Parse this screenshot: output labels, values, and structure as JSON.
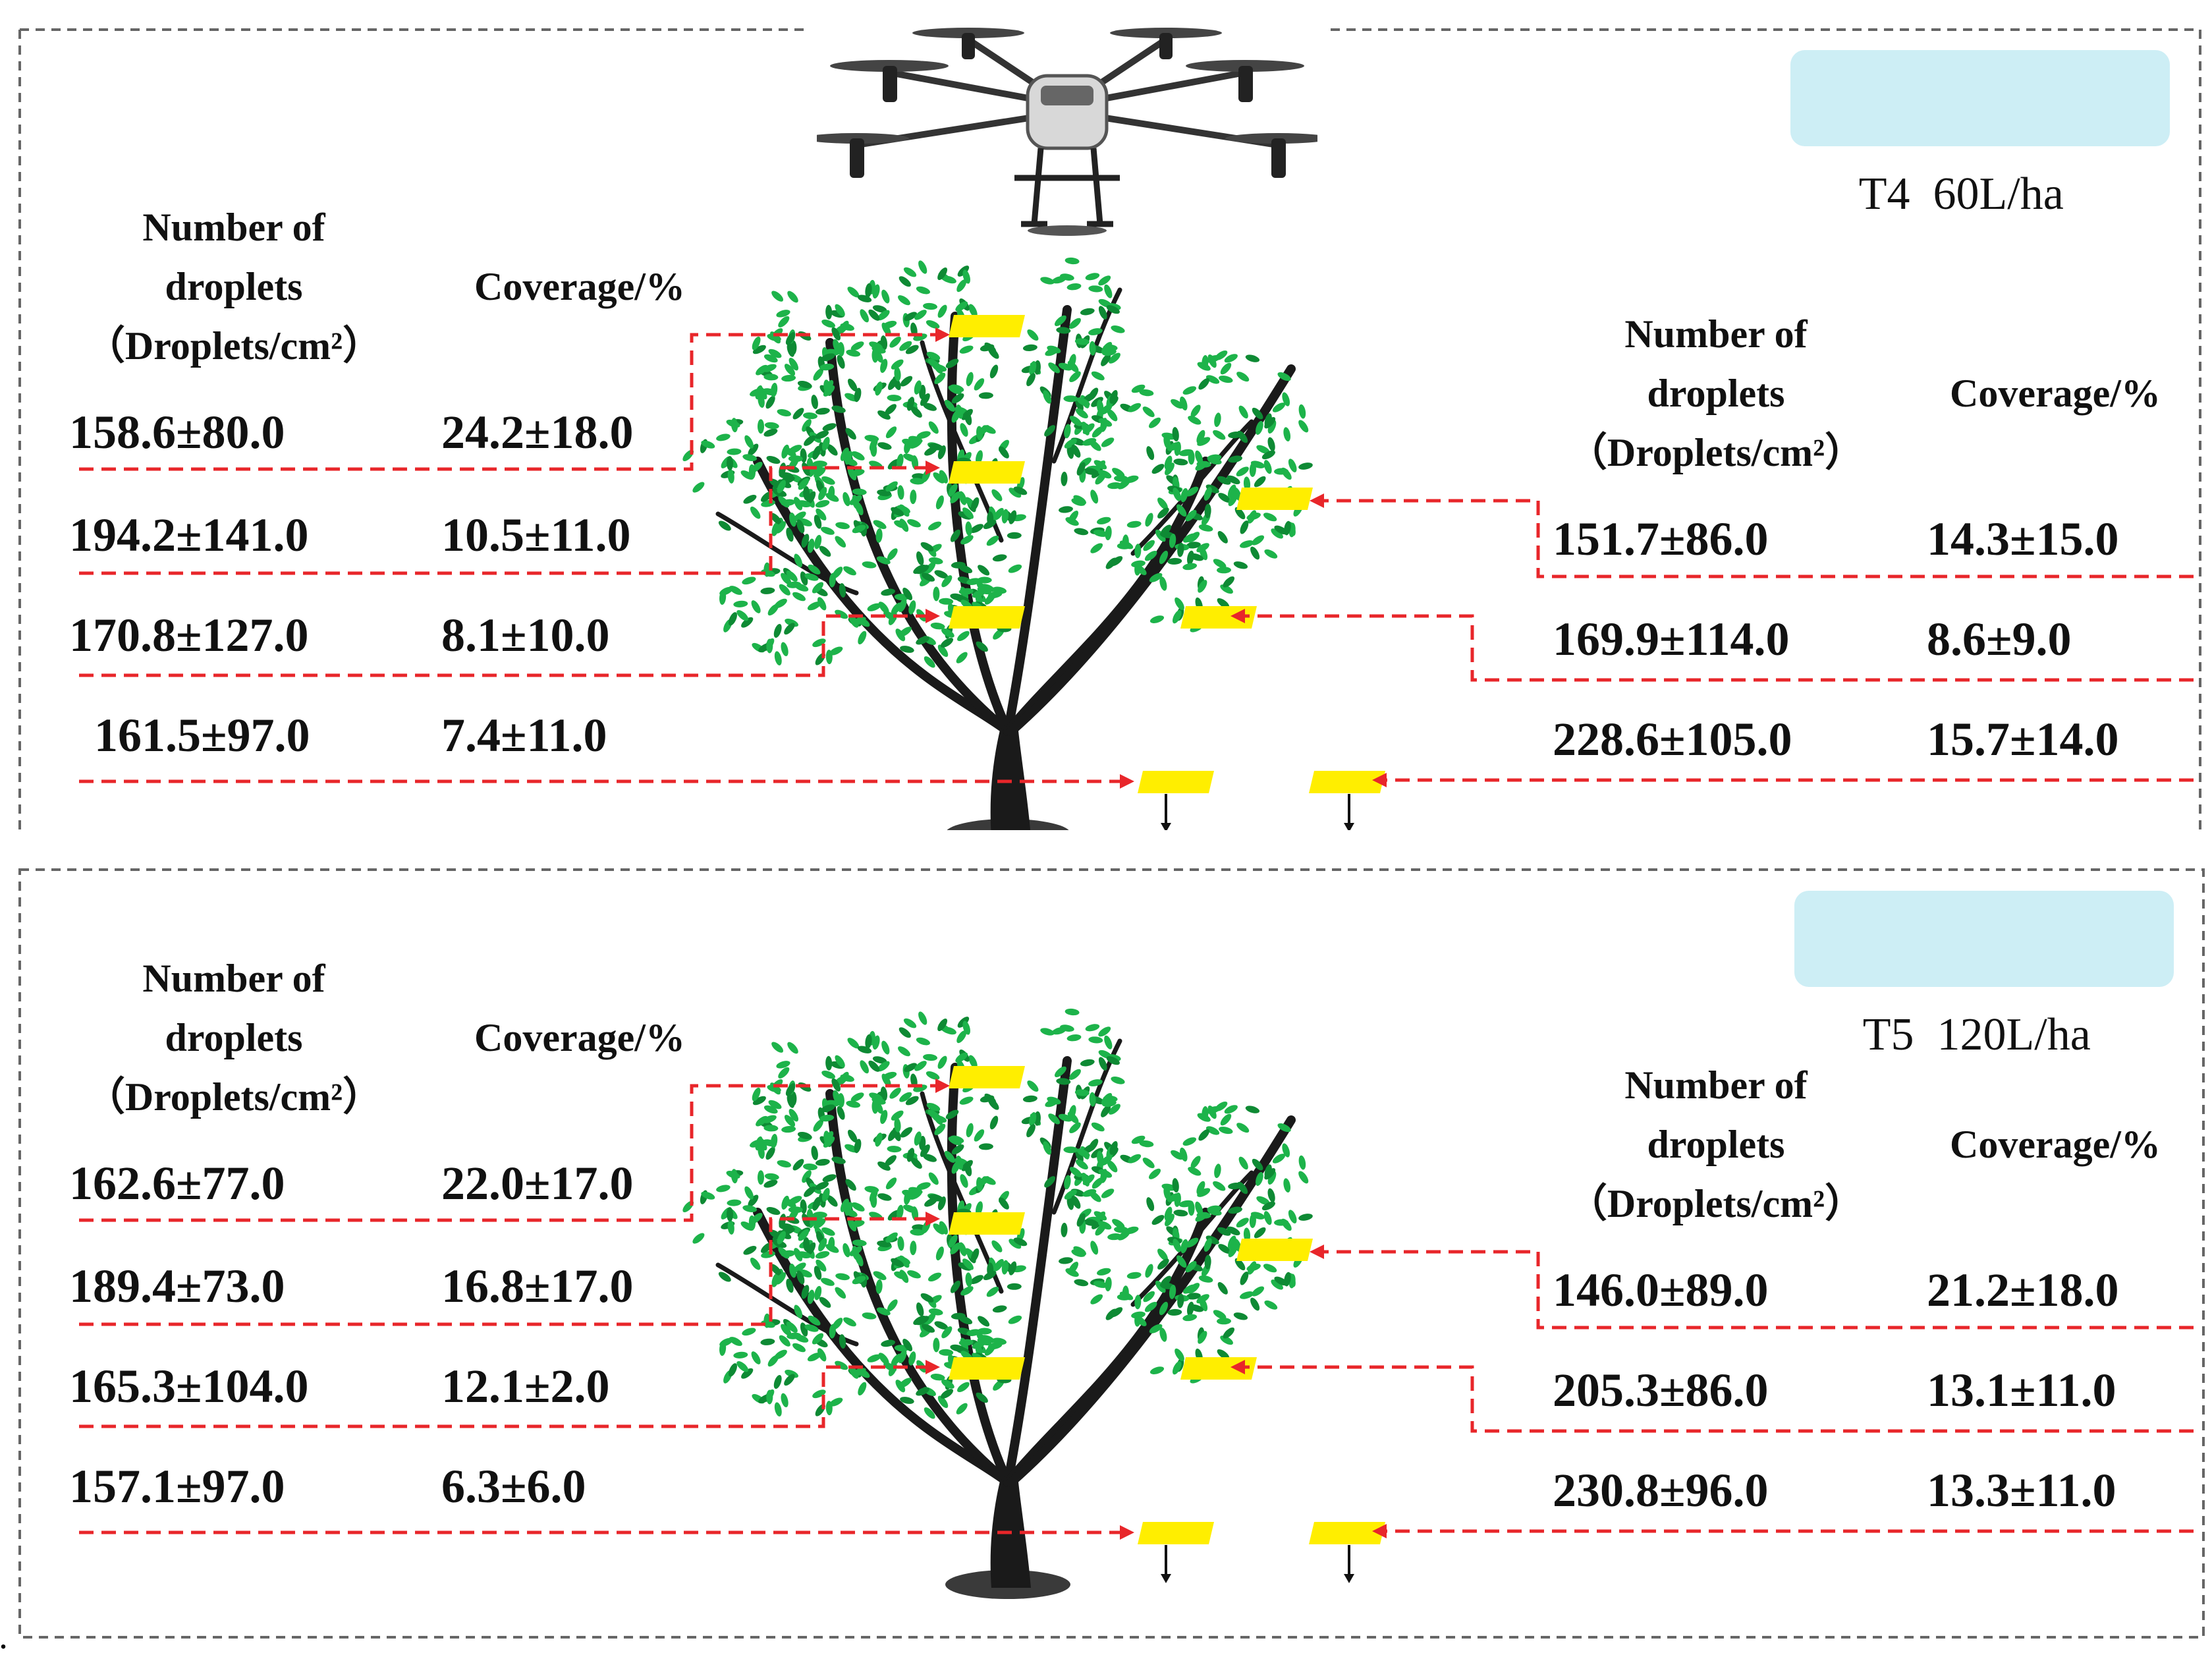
{
  "panels": [
    {
      "treatment": "T4",
      "rate": "60L/ha",
      "left": {
        "header_droplets": [
          "Number of",
          "droplets",
          "（Droplets/cm²）"
        ],
        "header_coverage": "Coverage/%",
        "rows": [
          {
            "droplets": "158.6±80.0",
            "coverage": "24.2±18.0"
          },
          {
            "droplets": "194.2±141.0",
            "coverage": "10.5±11.0"
          },
          {
            "droplets": "170.8±127.0",
            "coverage": "8.1±10.0"
          },
          {
            "droplets": "161.5±97.0",
            "coverage": "7.4±11.0"
          }
        ]
      },
      "right": {
        "header_droplets": [
          "Number of",
          "droplets",
          "（Droplets/cm²）"
        ],
        "header_coverage": "Coverage/%",
        "rows": [
          {
            "droplets": "151.7±86.0",
            "coverage": "14.3±15.0"
          },
          {
            "droplets": "169.9±114.0",
            "coverage": "8.6±9.0"
          },
          {
            "droplets": "228.6±105.0",
            "coverage": "15.7±14.0"
          }
        ]
      }
    },
    {
      "treatment": "T5",
      "rate": "120L/ha",
      "left": {
        "header_droplets": [
          "Number of",
          "droplets",
          "（Droplets/cm²）"
        ],
        "header_coverage": "Coverage/%",
        "rows": [
          {
            "droplets": "162.6±77.0",
            "coverage": "22.0±17.0"
          },
          {
            "droplets": "189.4±73.0",
            "coverage": "16.8±17.0"
          },
          {
            "droplets": "165.3±104.0",
            "coverage": "12.1±2.0"
          },
          {
            "droplets": "157.1±97.0",
            "coverage": "6.3±6.0"
          }
        ]
      },
      "right": {
        "header_droplets": [
          "Number of",
          "droplets",
          "（Droplets/cm²）"
        ],
        "header_coverage": "Coverage/%",
        "rows": [
          {
            "droplets": "146.0±89.0",
            "coverage": "21.2±18.0"
          },
          {
            "droplets": "205.3±86.0",
            "coverage": "13.1±11.0"
          },
          {
            "droplets": "230.8±96.0",
            "coverage": "13.3±11.0"
          }
        ]
      }
    }
  ],
  "footer_mark": ".",
  "colors": {
    "leaf": "#1db34a",
    "leaf_dark": "#0e8a34",
    "branch": "#1a1a1a",
    "card": "#ffee00",
    "arrow": "#e8262a",
    "tag_bg": "#cdeef5",
    "border": "#666666"
  },
  "icons": [
    "drone-icon",
    "tree-illustration",
    "sampling-card",
    "sampling-arrow"
  ]
}
